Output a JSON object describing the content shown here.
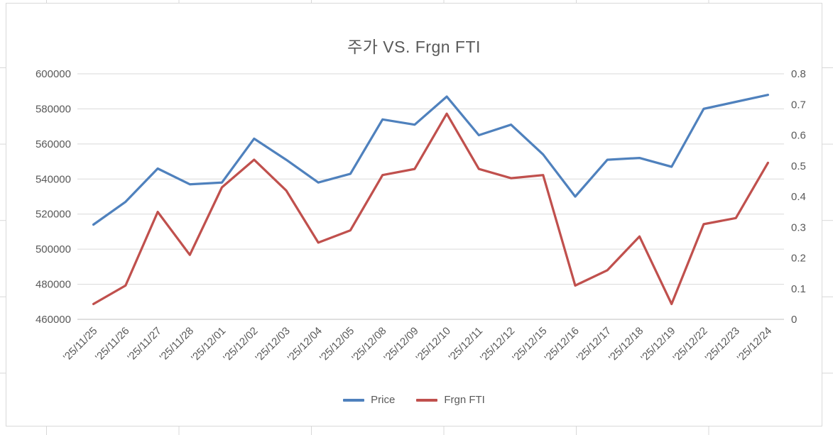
{
  "chart_data": {
    "type": "line",
    "title": "주가 VS. Frgn FTI",
    "grid": true,
    "legend_position": "bottom",
    "categories": [
      "'25/11/25",
      "'25/11/26",
      "'25/11/27",
      "'25/11/28",
      "'25/12/01",
      "'25/12/02",
      "'25/12/03",
      "'25/12/04",
      "'25/12/05",
      "'25/12/08",
      "'25/12/09",
      "'25/12/10",
      "'25/12/11",
      "'25/12/12",
      "'25/12/15",
      "'25/12/16",
      "'25/12/17",
      "'25/12/18",
      "'25/12/19",
      "'25/12/22",
      "'25/12/23",
      "'25/12/24"
    ],
    "series": [
      {
        "name": "Price",
        "axis": "left",
        "color": "#4F81BD",
        "values": [
          514000,
          527000,
          546000,
          537000,
          538000,
          563000,
          551000,
          538000,
          543000,
          574000,
          571000,
          587000,
          565000,
          571000,
          554000,
          530000,
          551000,
          552000,
          547000,
          580000,
          584000,
          588000
        ]
      },
      {
        "name": "Frgn FTI",
        "axis": "right",
        "color": "#C0504D",
        "values": [
          0.05,
          0.11,
          0.35,
          0.21,
          0.43,
          0.52,
          0.42,
          0.25,
          0.29,
          0.47,
          0.49,
          0.67,
          0.49,
          0.46,
          0.47,
          0.11,
          0.16,
          0.27,
          0.05,
          0.31,
          0.33,
          0.51
        ]
      }
    ],
    "left_axis": {
      "min": 460000,
      "max": 600000,
      "step": 20000,
      "ticks": [
        "600000",
        "580000",
        "560000",
        "540000",
        "520000",
        "500000",
        "480000",
        "460000"
      ]
    },
    "right_axis": {
      "min": 0,
      "max": 0.8,
      "step": 0.1,
      "ticks": [
        "0.8",
        "0.7",
        "0.6",
        "0.5",
        "0.4",
        "0.3",
        "0.2",
        "0.1",
        "0"
      ]
    },
    "colors": {
      "text": "#595959",
      "gridline": "#d9d9d9",
      "axis_line": "#bfbfbf"
    }
  }
}
